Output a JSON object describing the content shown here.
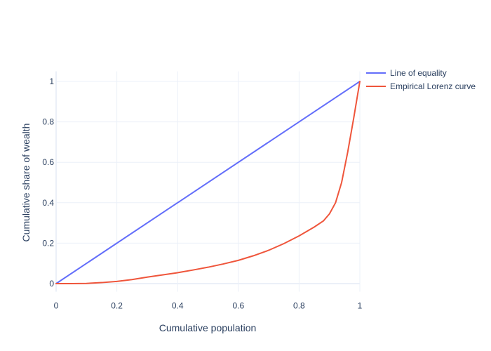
{
  "chart_data": {
    "type": "line",
    "xlabel": "Cumulative population",
    "ylabel": "Cumulative share of wealth",
    "xlim": [
      0,
      1
    ],
    "ylim": [
      -0.04,
      1.05
    ],
    "x_ticks": [
      "0",
      "0.2",
      "0.4",
      "0.6",
      "0.8",
      "1"
    ],
    "y_ticks": [
      "0",
      "0.2",
      "0.4",
      "0.6",
      "0.8",
      "1"
    ],
    "grid": true,
    "legend_position": "top-right",
    "series": [
      {
        "name": "Line of equality",
        "color": "#636efa",
        "x": [
          0,
          1
        ],
        "y": [
          0,
          1
        ]
      },
      {
        "name": "Empirical Lorenz curve",
        "color": "#ef553b",
        "x": [
          0,
          0.05,
          0.1,
          0.15,
          0.2,
          0.25,
          0.3,
          0.35,
          0.4,
          0.45,
          0.5,
          0.55,
          0.6,
          0.65,
          0.7,
          0.75,
          0.8,
          0.85,
          0.88,
          0.9,
          0.92,
          0.94,
          0.96,
          0.98,
          1.0
        ],
        "y": [
          0,
          0,
          0.001,
          0.005,
          0.011,
          0.02,
          0.032,
          0.043,
          0.054,
          0.067,
          0.081,
          0.097,
          0.115,
          0.138,
          0.165,
          0.198,
          0.236,
          0.28,
          0.31,
          0.345,
          0.4,
          0.5,
          0.65,
          0.82,
          1.0
        ]
      }
    ]
  }
}
